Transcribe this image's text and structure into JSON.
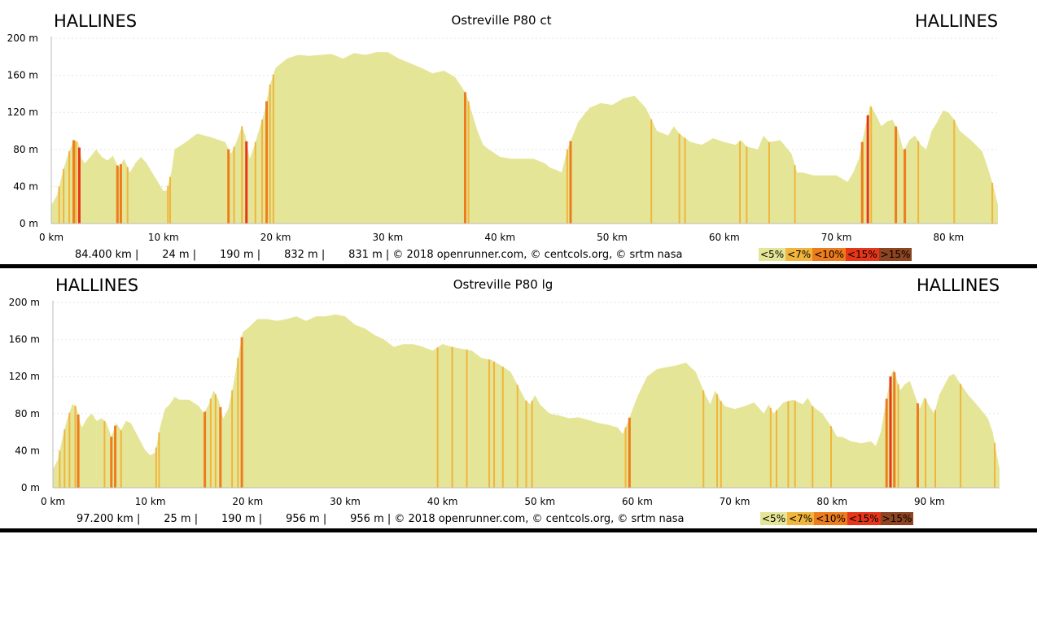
{
  "chart_data": [
    {
      "type": "area",
      "title": "Ostreville P80 ct",
      "start_label": "HALLINES",
      "end_label": "HALLINES",
      "x_unit": "km",
      "y_unit": "m",
      "xlim": [
        0,
        84.4
      ],
      "ylim": [
        0,
        200
      ],
      "x_ticks": [
        "0 km",
        "10 km",
        "20 km",
        "30 km",
        "40 km",
        "50 km",
        "60 km",
        "70 km",
        "80 km"
      ],
      "y_ticks": [
        "0 m",
        "40 m",
        "80 m",
        "120 m",
        "160 m",
        "200 m"
      ],
      "grid": true,
      "profile": [
        [
          0,
          20
        ],
        [
          0.5,
          30
        ],
        [
          1,
          55
        ],
        [
          1.5,
          75
        ],
        [
          2,
          90
        ],
        [
          2.4,
          88
        ],
        [
          2.7,
          70
        ],
        [
          3,
          65
        ],
        [
          3.5,
          72
        ],
        [
          4,
          80
        ],
        [
          4.5,
          72
        ],
        [
          5,
          68
        ],
        [
          5.5,
          73
        ],
        [
          6,
          60
        ],
        [
          6.5,
          70
        ],
        [
          7,
          55
        ],
        [
          7.5,
          65
        ],
        [
          8,
          72
        ],
        [
          8.5,
          65
        ],
        [
          9,
          55
        ],
        [
          9.5,
          45
        ],
        [
          10,
          35
        ],
        [
          10.3,
          36
        ],
        [
          10.7,
          55
        ],
        [
          11,
          80
        ],
        [
          12,
          88
        ],
        [
          13,
          97
        ],
        [
          14,
          94
        ],
        [
          15,
          90
        ],
        [
          15.5,
          88
        ],
        [
          16,
          75
        ],
        [
          16.5,
          88
        ],
        [
          17,
          105
        ],
        [
          17.3,
          95
        ],
        [
          17.7,
          70
        ],
        [
          18,
          80
        ],
        [
          18.5,
          100
        ],
        [
          19,
          120
        ],
        [
          19.5,
          150
        ],
        [
          20,
          168
        ],
        [
          21,
          178
        ],
        [
          22,
          182
        ],
        [
          23,
          181
        ],
        [
          24,
          182
        ],
        [
          25,
          183
        ],
        [
          26,
          178
        ],
        [
          27,
          184
        ],
        [
          28,
          182
        ],
        [
          29,
          185
        ],
        [
          30,
          185
        ],
        [
          31,
          178
        ],
        [
          32,
          173
        ],
        [
          33,
          168
        ],
        [
          34,
          162
        ],
        [
          35,
          165
        ],
        [
          36,
          158
        ],
        [
          37,
          140
        ],
        [
          37.5,
          120
        ],
        [
          38,
          100
        ],
        [
          38.5,
          85
        ],
        [
          39,
          80
        ],
        [
          40,
          72
        ],
        [
          41,
          70
        ],
        [
          42,
          70
        ],
        [
          43,
          70
        ],
        [
          44,
          65
        ],
        [
          44.5,
          60
        ],
        [
          45,
          58
        ],
        [
          45.5,
          55
        ],
        [
          46,
          80
        ],
        [
          47,
          110
        ],
        [
          48,
          125
        ],
        [
          49,
          130
        ],
        [
          50,
          128
        ],
        [
          51,
          135
        ],
        [
          52,
          138
        ],
        [
          53,
          125
        ],
        [
          54,
          100
        ],
        [
          55,
          95
        ],
        [
          55.5,
          105
        ],
        [
          56,
          97
        ],
        [
          57,
          88
        ],
        [
          58,
          85
        ],
        [
          59,
          92
        ],
        [
          60,
          88
        ],
        [
          61,
          85
        ],
        [
          61.5,
          90
        ],
        [
          62,
          83
        ],
        [
          63,
          80
        ],
        [
          63.5,
          95
        ],
        [
          64,
          88
        ],
        [
          65,
          90
        ],
        [
          66,
          75
        ],
        [
          66.5,
          55
        ],
        [
          67,
          55
        ],
        [
          68,
          52
        ],
        [
          69,
          52
        ],
        [
          70,
          52
        ],
        [
          71,
          45
        ],
        [
          71.5,
          55
        ],
        [
          72,
          70
        ],
        [
          72.5,
          100
        ],
        [
          73,
          128
        ],
        [
          73.5,
          118
        ],
        [
          74,
          105
        ],
        [
          74.5,
          110
        ],
        [
          75,
          112
        ],
        [
          75.5,
          100
        ],
        [
          76,
          78
        ],
        [
          76.5,
          90
        ],
        [
          77,
          95
        ],
        [
          77.5,
          85
        ],
        [
          78,
          80
        ],
        [
          78.5,
          100
        ],
        [
          79,
          110
        ],
        [
          79.5,
          122
        ],
        [
          80,
          120
        ],
        [
          80.5,
          112
        ],
        [
          81,
          100
        ],
        [
          82,
          90
        ],
        [
          83,
          78
        ],
        [
          83.5,
          60
        ],
        [
          84,
          40
        ],
        [
          84.4,
          20
        ]
      ],
      "grade_bands": [
        {
          "x": 0.7,
          "g": 1
        },
        {
          "x": 1.1,
          "g": 1
        },
        {
          "x": 1.6,
          "g": 1
        },
        {
          "x": 2.0,
          "g": 2
        },
        {
          "x": 2.2,
          "g": 1
        },
        {
          "x": 2.5,
          "g": 3
        },
        {
          "x": 5.9,
          "g": 2
        },
        {
          "x": 6.2,
          "g": 2
        },
        {
          "x": 6.8,
          "g": 1
        },
        {
          "x": 10.4,
          "g": 1
        },
        {
          "x": 10.6,
          "g": 1
        },
        {
          "x": 15.8,
          "g": 2
        },
        {
          "x": 16.3,
          "g": 1
        },
        {
          "x": 17.0,
          "g": 1
        },
        {
          "x": 17.4,
          "g": 3
        },
        {
          "x": 18.2,
          "g": 1
        },
        {
          "x": 18.8,
          "g": 1
        },
        {
          "x": 19.2,
          "g": 2
        },
        {
          "x": 19.5,
          "g": 1
        },
        {
          "x": 19.8,
          "g": 1
        },
        {
          "x": 36.9,
          "g": 2
        },
        {
          "x": 37.2,
          "g": 1
        },
        {
          "x": 46.0,
          "g": 1
        },
        {
          "x": 46.3,
          "g": 2
        },
        {
          "x": 53.5,
          "g": 1
        },
        {
          "x": 56.0,
          "g": 1
        },
        {
          "x": 56.5,
          "g": 1
        },
        {
          "x": 61.4,
          "g": 1
        },
        {
          "x": 62.0,
          "g": 1
        },
        {
          "x": 64.0,
          "g": 1
        },
        {
          "x": 66.3,
          "g": 1
        },
        {
          "x": 72.3,
          "g": 2
        },
        {
          "x": 72.8,
          "g": 3
        },
        {
          "x": 73.1,
          "g": 1
        },
        {
          "x": 75.3,
          "g": 2
        },
        {
          "x": 76.1,
          "g": 2
        },
        {
          "x": 77.3,
          "g": 1
        },
        {
          "x": 80.5,
          "g": 1
        },
        {
          "x": 83.9,
          "g": 1
        }
      ],
      "stats_text": "84.400 km |       24 m |       190 m |       832 m |       831 m | © 2018 openrunner.com, © centcols.org, © srtm nasa",
      "legend": [
        "<5%",
        "<7%",
        "<10%",
        "<15%",
        ">15%"
      ],
      "legend_colors": [
        "#e5e598",
        "#f0b53c",
        "#ed7d1c",
        "#e63619",
        "#8c4421"
      ],
      "fill_color": "#e5e598"
    },
    {
      "type": "area",
      "title": "Ostreville P80 lg",
      "start_label": "HALLINES",
      "end_label": "HALLINES",
      "x_unit": "km",
      "y_unit": "m",
      "xlim": [
        0,
        97.2
      ],
      "ylim": [
        0,
        200
      ],
      "x_ticks": [
        "0 km",
        "10 km",
        "20 km",
        "30 km",
        "40 km",
        "50 km",
        "60 km",
        "70 km",
        "80 km",
        "90 km"
      ],
      "y_ticks": [
        "0 m",
        "40 m",
        "80 m",
        "120 m",
        "160 m",
        "200 m"
      ],
      "grid": true,
      "profile": [
        [
          0,
          20
        ],
        [
          0.5,
          30
        ],
        [
          1,
          55
        ],
        [
          1.5,
          75
        ],
        [
          2,
          90
        ],
        [
          2.4,
          88
        ],
        [
          2.8,
          70
        ],
        [
          3,
          65
        ],
        [
          3.5,
          75
        ],
        [
          4,
          80
        ],
        [
          4.5,
          72
        ],
        [
          5,
          75
        ],
        [
          5.5,
          70
        ],
        [
          6,
          55
        ],
        [
          6.5,
          70
        ],
        [
          7,
          62
        ],
        [
          7.5,
          72
        ],
        [
          8,
          70
        ],
        [
          8.5,
          60
        ],
        [
          9,
          50
        ],
        [
          9.5,
          40
        ],
        [
          10,
          35
        ],
        [
          10.5,
          38
        ],
        [
          11,
          65
        ],
        [
          11.5,
          85
        ],
        [
          12,
          90
        ],
        [
          12.5,
          98
        ],
        [
          13,
          95
        ],
        [
          14,
          95
        ],
        [
          15,
          88
        ],
        [
          15.5,
          80
        ],
        [
          16,
          90
        ],
        [
          16.5,
          105
        ],
        [
          17,
          95
        ],
        [
          17.5,
          75
        ],
        [
          18,
          85
        ],
        [
          18.5,
          110
        ],
        [
          19,
          140
        ],
        [
          19.5,
          168
        ],
        [
          20,
          172
        ],
        [
          21,
          182
        ],
        [
          22,
          182
        ],
        [
          23,
          180
        ],
        [
          24,
          182
        ],
        [
          25,
          185
        ],
        [
          26,
          180
        ],
        [
          27,
          185
        ],
        [
          28,
          185
        ],
        [
          29,
          187
        ],
        [
          30,
          185
        ],
        [
          31,
          176
        ],
        [
          32,
          172
        ],
        [
          33,
          165
        ],
        [
          34,
          160
        ],
        [
          35,
          152
        ],
        [
          36,
          155
        ],
        [
          37,
          155
        ],
        [
          38,
          152
        ],
        [
          39,
          148
        ],
        [
          40,
          155
        ],
        [
          41,
          152
        ],
        [
          42,
          150
        ],
        [
          43,
          148
        ],
        [
          44,
          140
        ],
        [
          45,
          138
        ],
        [
          46,
          132
        ],
        [
          47,
          125
        ],
        [
          48,
          105
        ],
        [
          48.5,
          95
        ],
        [
          49,
          90
        ],
        [
          49.5,
          100
        ],
        [
          50,
          90
        ],
        [
          51,
          80
        ],
        [
          52,
          78
        ],
        [
          53,
          75
        ],
        [
          54,
          76
        ],
        [
          55,
          73
        ],
        [
          56,
          70
        ],
        [
          57,
          68
        ],
        [
          58,
          65
        ],
        [
          58.5,
          58
        ],
        [
          59,
          70
        ],
        [
          60,
          98
        ],
        [
          61,
          120
        ],
        [
          62,
          128
        ],
        [
          63,
          130
        ],
        [
          64,
          132
        ],
        [
          65,
          135
        ],
        [
          66,
          125
        ],
        [
          67,
          100
        ],
        [
          67.5,
          90
        ],
        [
          68,
          105
        ],
        [
          68.5,
          95
        ],
        [
          69,
          88
        ],
        [
          70,
          85
        ],
        [
          71,
          88
        ],
        [
          72,
          92
        ],
        [
          73,
          80
        ],
        [
          73.5,
          90
        ],
        [
          74,
          80
        ],
        [
          75,
          92
        ],
        [
          76,
          95
        ],
        [
          77,
          90
        ],
        [
          77.5,
          97
        ],
        [
          78,
          88
        ],
        [
          79,
          80
        ],
        [
          80,
          65
        ],
        [
          80.5,
          55
        ],
        [
          81,
          55
        ],
        [
          82,
          50
        ],
        [
          83,
          48
        ],
        [
          84,
          50
        ],
        [
          84.5,
          45
        ],
        [
          85,
          60
        ],
        [
          85.5,
          90
        ],
        [
          86,
          120
        ],
        [
          86.3,
          128
        ],
        [
          86.7,
          115
        ],
        [
          87,
          105
        ],
        [
          87.5,
          112
        ],
        [
          88,
          115
        ],
        [
          88.5,
          100
        ],
        [
          89,
          85
        ],
        [
          89.5,
          98
        ],
        [
          90,
          88
        ],
        [
          90.5,
          80
        ],
        [
          91,
          100
        ],
        [
          92,
          120
        ],
        [
          92.5,
          123
        ],
        [
          93,
          115
        ],
        [
          94,
          100
        ],
        [
          95,
          88
        ],
        [
          96,
          75
        ],
        [
          96.5,
          60
        ],
        [
          97.2,
          20
        ]
      ],
      "grade_bands": [
        {
          "x": 0.7,
          "g": 1
        },
        {
          "x": 1.2,
          "g": 1
        },
        {
          "x": 1.7,
          "g": 1
        },
        {
          "x": 2.3,
          "g": 1
        },
        {
          "x": 2.6,
          "g": 2
        },
        {
          "x": 5.3,
          "g": 1
        },
        {
          "x": 6.0,
          "g": 2
        },
        {
          "x": 6.4,
          "g": 2
        },
        {
          "x": 7.0,
          "g": 1
        },
        {
          "x": 10.6,
          "g": 1
        },
        {
          "x": 10.9,
          "g": 1
        },
        {
          "x": 15.6,
          "g": 2
        },
        {
          "x": 16.2,
          "g": 1
        },
        {
          "x": 16.7,
          "g": 1
        },
        {
          "x": 17.2,
          "g": 2
        },
        {
          "x": 18.4,
          "g": 1
        },
        {
          "x": 19.0,
          "g": 1
        },
        {
          "x": 19.4,
          "g": 2
        },
        {
          "x": 39.5,
          "g": 1
        },
        {
          "x": 41.0,
          "g": 1
        },
        {
          "x": 42.5,
          "g": 1
        },
        {
          "x": 44.8,
          "g": 1
        },
        {
          "x": 45.3,
          "g": 1
        },
        {
          "x": 46.2,
          "g": 1
        },
        {
          "x": 47.7,
          "g": 1
        },
        {
          "x": 48.6,
          "g": 1
        },
        {
          "x": 49.2,
          "g": 1
        },
        {
          "x": 58.8,
          "g": 1
        },
        {
          "x": 59.2,
          "g": 2
        },
        {
          "x": 66.8,
          "g": 1
        },
        {
          "x": 68.2,
          "g": 1
        },
        {
          "x": 68.6,
          "g": 1
        },
        {
          "x": 73.7,
          "g": 1
        },
        {
          "x": 74.3,
          "g": 1
        },
        {
          "x": 75.5,
          "g": 1
        },
        {
          "x": 76.2,
          "g": 1
        },
        {
          "x": 78.0,
          "g": 1
        },
        {
          "x": 79.9,
          "g": 1
        },
        {
          "x": 85.6,
          "g": 2
        },
        {
          "x": 86.0,
          "g": 3
        },
        {
          "x": 86.4,
          "g": 2
        },
        {
          "x": 86.8,
          "g": 1
        },
        {
          "x": 88.8,
          "g": 2
        },
        {
          "x": 89.6,
          "g": 1
        },
        {
          "x": 90.6,
          "g": 1
        },
        {
          "x": 93.2,
          "g": 1
        },
        {
          "x": 96.7,
          "g": 1
        }
      ],
      "stats_text": "97.200 km |       25 m |       190 m |       956 m |       956 m | © 2018 openrunner.com, © centcols.org, © srtm nasa",
      "legend": [
        "<5%",
        "<7%",
        "<10%",
        "<15%",
        ">15%"
      ],
      "legend_colors": [
        "#e5e598",
        "#f0b53c",
        "#ed7d1c",
        "#e63619",
        "#8c4421"
      ],
      "fill_color": "#e5e598"
    }
  ]
}
